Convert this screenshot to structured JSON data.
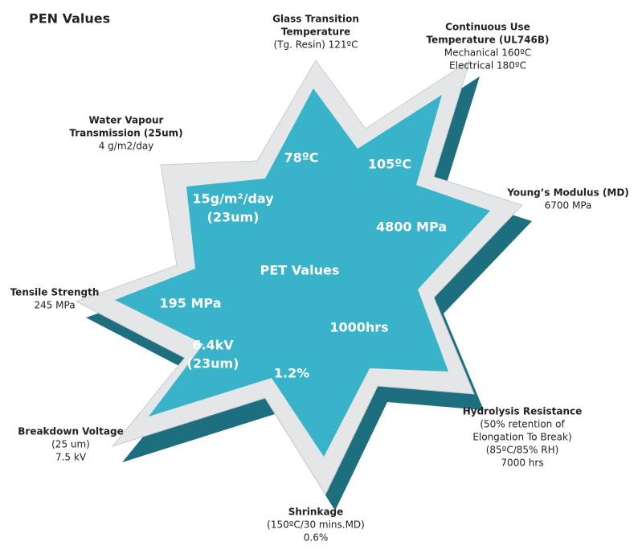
{
  "header": {
    "title": "PEN Values"
  },
  "center_label": "PET Values",
  "pen_values": [
    {
      "bold": [
        "Glass Transition",
        "Temperature"
      ],
      "text": [
        "(Tg. Resin) 121ºC"
      ]
    },
    {
      "bold": [
        "Continuous Use",
        "Temperature (UL746B)"
      ],
      "text": [
        "Mechanical 160ºC",
        "Electrical 180ºC"
      ]
    },
    {
      "bold": [
        "Young’s Modulus (MD)"
      ],
      "text": [
        "6700 MPa"
      ]
    },
    {
      "bold": [
        "Hydrolysis Resistance"
      ],
      "text": [
        "(50% retention of",
        "Elongation To Break)",
        "(85ºC/85% RH)",
        "7000 hrs"
      ]
    },
    {
      "bold": [
        "Shrinkage"
      ],
      "text": [
        "(150ºC/30 mins.MD)",
        "0.6%"
      ]
    },
    {
      "bold": [
        "Breakdown Voltage"
      ],
      "text": [
        "(25 um)",
        "7.5 kV"
      ]
    },
    {
      "bold": [
        "Tensile Strength"
      ],
      "text": [
        "245 MPa"
      ]
    },
    {
      "bold": [
        "Water Vapour",
        "Transmission (25um)"
      ],
      "text": [
        "4 g/m2/day"
      ]
    }
  ],
  "pet_values": [
    {
      "lines": [
        "78ºC"
      ]
    },
    {
      "lines": [
        "105ºC"
      ]
    },
    {
      "lines": [
        "4800 MPa"
      ]
    },
    {
      "lines": [
        "1000hrs"
      ]
    },
    {
      "lines": [
        "1.2%"
      ]
    },
    {
      "lines": [
        "6.4kV",
        "(23um)"
      ]
    },
    {
      "lines": [
        "195 MPa"
      ]
    },
    {
      "lines": [
        "15g/m²/day",
        "(23um)"
      ]
    }
  ]
}
